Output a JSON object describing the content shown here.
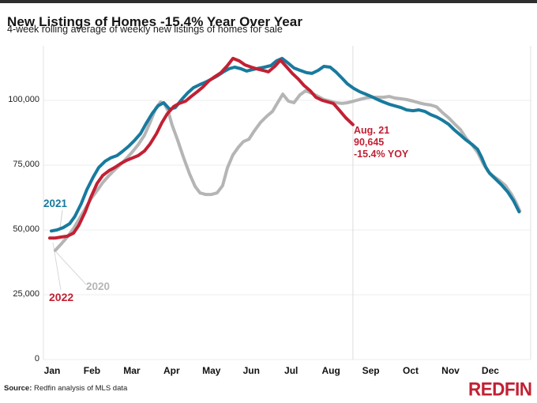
{
  "header": {
    "title": "New Listings of Homes -15.4% Year Over Year",
    "subtitle": "4-week rolling average of weekly new listings of homes for sale"
  },
  "series_labels": {
    "y2021": "2021",
    "y2020": "2020",
    "y2022": "2022"
  },
  "footer": {
    "source_label": "Source:",
    "source_text": " Redfin analysis of MLS data",
    "logo_text": "REDFIN"
  },
  "chart_data": {
    "type": "line",
    "title": "New Listings of Homes -15.4% Year Over Year",
    "subtitle": "4-week rolling average of weekly new listings of homes for sale",
    "grid": "horizontal-light",
    "legend_position": "inline-labels",
    "x_axis": {
      "unit": "month",
      "months": [
        "Jan",
        "Feb",
        "Mar",
        "Apr",
        "May",
        "Jun",
        "Jul",
        "Aug",
        "Sep",
        "Oct",
        "Nov",
        "Dec"
      ]
    },
    "y_axis": {
      "range": [
        0,
        121000
      ],
      "ticks": [
        {
          "label": "0",
          "value": 0
        },
        {
          "label": "25,000",
          "value": 25000
        },
        {
          "label": "50,000",
          "value": 50000
        },
        {
          "label": "75,000",
          "value": 75000
        },
        {
          "label": "100,000",
          "value": 100000
        }
      ]
    },
    "annotation": {
      "lines": [
        "Aug. 21",
        "90,645",
        "-15.4% YOY"
      ],
      "marker_month": 7.55,
      "color": "#c22033"
    },
    "series": [
      {
        "name": "2020",
        "color": "#b5b5b5",
        "points": [
          [
            0.08,
            42100
          ],
          [
            0.24,
            44800
          ],
          [
            0.38,
            47300
          ],
          [
            0.54,
            50600
          ],
          [
            0.67,
            54000
          ],
          [
            0.83,
            58200
          ],
          [
            0.97,
            61900
          ],
          [
            1.13,
            65200
          ],
          [
            1.27,
            68300
          ],
          [
            1.43,
            71000
          ],
          [
            1.57,
            73200
          ],
          [
            1.72,
            75300
          ],
          [
            1.86,
            77500
          ],
          [
            2.02,
            80200
          ],
          [
            2.16,
            82900
          ],
          [
            2.32,
            86600
          ],
          [
            2.46,
            91500
          ],
          [
            2.6,
            96900
          ],
          [
            2.72,
            99400
          ],
          [
            2.81,
            98800
          ],
          [
            2.91,
            96000
          ],
          [
            3.01,
            90500
          ],
          [
            3.15,
            84700
          ],
          [
            3.29,
            78300
          ],
          [
            3.45,
            71600
          ],
          [
            3.59,
            66800
          ],
          [
            3.71,
            64300
          ],
          [
            3.85,
            63700
          ],
          [
            4.0,
            63700
          ],
          [
            4.14,
            64300
          ],
          [
            4.28,
            67100
          ],
          [
            4.4,
            74000
          ],
          [
            4.54,
            79000
          ],
          [
            4.68,
            82000
          ],
          [
            4.8,
            84100
          ],
          [
            4.94,
            85000
          ],
          [
            5.07,
            88100
          ],
          [
            5.23,
            91500
          ],
          [
            5.39,
            93900
          ],
          [
            5.53,
            95700
          ],
          [
            5.67,
            99400
          ],
          [
            5.79,
            102400
          ],
          [
            5.93,
            99700
          ],
          [
            6.07,
            99100
          ],
          [
            6.22,
            102100
          ],
          [
            6.36,
            103700
          ],
          [
            6.52,
            102700
          ],
          [
            6.68,
            101500
          ],
          [
            6.82,
            100300
          ],
          [
            6.98,
            99700
          ],
          [
            7.12,
            99100
          ],
          [
            7.28,
            98800
          ],
          [
            7.41,
            99100
          ],
          [
            7.57,
            99700
          ],
          [
            7.71,
            100300
          ],
          [
            7.87,
            100900
          ],
          [
            8.01,
            101200
          ],
          [
            8.17,
            101200
          ],
          [
            8.31,
            101200
          ],
          [
            8.46,
            101500
          ],
          [
            8.6,
            100900
          ],
          [
            8.76,
            100600
          ],
          [
            8.9,
            100300
          ],
          [
            9.06,
            99700
          ],
          [
            9.2,
            99100
          ],
          [
            9.36,
            98500
          ],
          [
            9.5,
            98200
          ],
          [
            9.65,
            97500
          ],
          [
            9.79,
            95400
          ],
          [
            9.95,
            93300
          ],
          [
            10.09,
            91100
          ],
          [
            10.25,
            88700
          ],
          [
            10.39,
            85400
          ],
          [
            10.55,
            82600
          ],
          [
            10.68,
            79900
          ],
          [
            10.82,
            75600
          ],
          [
            10.94,
            72600
          ],
          [
            11.08,
            70700
          ],
          [
            11.22,
            69200
          ],
          [
            11.38,
            67100
          ],
          [
            11.52,
            64000
          ],
          [
            11.64,
            60700
          ],
          [
            11.74,
            57300
          ]
        ]
      },
      {
        "name": "2021",
        "color": "#187a9e",
        "points": [
          [
            -0.02,
            49600
          ],
          [
            0.12,
            50000
          ],
          [
            0.28,
            50900
          ],
          [
            0.44,
            52400
          ],
          [
            0.57,
            55200
          ],
          [
            0.73,
            60100
          ],
          [
            0.87,
            65500
          ],
          [
            1.03,
            70400
          ],
          [
            1.17,
            74100
          ],
          [
            1.33,
            76500
          ],
          [
            1.47,
            77800
          ],
          [
            1.63,
            78700
          ],
          [
            1.76,
            80200
          ],
          [
            1.92,
            82300
          ],
          [
            2.06,
            84400
          ],
          [
            2.22,
            87200
          ],
          [
            2.36,
            91100
          ],
          [
            2.52,
            95100
          ],
          [
            2.66,
            97900
          ],
          [
            2.8,
            99100
          ],
          [
            2.95,
            96600
          ],
          [
            3.09,
            97200
          ],
          [
            3.25,
            100300
          ],
          [
            3.41,
            103000
          ],
          [
            3.55,
            104900
          ],
          [
            3.71,
            106100
          ],
          [
            3.85,
            107000
          ],
          [
            4.0,
            108200
          ],
          [
            4.14,
            109400
          ],
          [
            4.3,
            111000
          ],
          [
            4.44,
            112200
          ],
          [
            4.58,
            112800
          ],
          [
            4.74,
            112200
          ],
          [
            4.88,
            111300
          ],
          [
            5.03,
            111900
          ],
          [
            5.19,
            112400
          ],
          [
            5.33,
            112800
          ],
          [
            5.49,
            113400
          ],
          [
            5.63,
            115200
          ],
          [
            5.77,
            116200
          ],
          [
            5.93,
            114300
          ],
          [
            6.07,
            112500
          ],
          [
            6.22,
            111600
          ],
          [
            6.38,
            110700
          ],
          [
            6.52,
            110400
          ],
          [
            6.68,
            111600
          ],
          [
            6.82,
            113100
          ],
          [
            6.98,
            112800
          ],
          [
            7.12,
            111000
          ],
          [
            7.28,
            108500
          ],
          [
            7.41,
            106400
          ],
          [
            7.57,
            104600
          ],
          [
            7.71,
            103400
          ],
          [
            7.87,
            102400
          ],
          [
            8.01,
            101500
          ],
          [
            8.17,
            100300
          ],
          [
            8.31,
            99400
          ],
          [
            8.46,
            98500
          ],
          [
            8.6,
            97900
          ],
          [
            8.76,
            97200
          ],
          [
            8.9,
            96300
          ],
          [
            9.06,
            96000
          ],
          [
            9.2,
            96300
          ],
          [
            9.36,
            95700
          ],
          [
            9.5,
            94500
          ],
          [
            9.65,
            93600
          ],
          [
            9.79,
            92400
          ],
          [
            9.95,
            90800
          ],
          [
            10.09,
            88700
          ],
          [
            10.25,
            86600
          ],
          [
            10.39,
            84700
          ],
          [
            10.55,
            82900
          ],
          [
            10.68,
            81100
          ],
          [
            10.78,
            78000
          ],
          [
            10.88,
            74400
          ],
          [
            10.98,
            71900
          ],
          [
            11.14,
            69500
          ],
          [
            11.28,
            67400
          ],
          [
            11.44,
            64600
          ],
          [
            11.58,
            61300
          ],
          [
            11.72,
            57000
          ]
        ]
      },
      {
        "name": "2022",
        "color": "#c22033",
        "points": [
          [
            -0.06,
            46900
          ],
          [
            0.08,
            46900
          ],
          [
            0.24,
            47300
          ],
          [
            0.38,
            47600
          ],
          [
            0.54,
            48800
          ],
          [
            0.67,
            51800
          ],
          [
            0.83,
            57000
          ],
          [
            0.97,
            62500
          ],
          [
            1.13,
            68000
          ],
          [
            1.27,
            71000
          ],
          [
            1.43,
            72900
          ],
          [
            1.57,
            74100
          ],
          [
            1.72,
            75600
          ],
          [
            1.86,
            76800
          ],
          [
            2.02,
            77800
          ],
          [
            2.16,
            78700
          ],
          [
            2.32,
            80500
          ],
          [
            2.46,
            83200
          ],
          [
            2.62,
            87200
          ],
          [
            2.76,
            91500
          ],
          [
            2.89,
            94800
          ],
          [
            3.05,
            97600
          ],
          [
            3.19,
            98800
          ],
          [
            3.35,
            99700
          ],
          [
            3.49,
            101500
          ],
          [
            3.65,
            103400
          ],
          [
            3.79,
            105200
          ],
          [
            3.94,
            107600
          ],
          [
            4.08,
            109100
          ],
          [
            4.24,
            110700
          ],
          [
            4.4,
            113400
          ],
          [
            4.54,
            116200
          ],
          [
            4.7,
            115200
          ],
          [
            4.84,
            113700
          ],
          [
            5.0,
            112800
          ],
          [
            5.13,
            112200
          ],
          [
            5.29,
            111600
          ],
          [
            5.43,
            111000
          ],
          [
            5.59,
            113100
          ],
          [
            5.73,
            115500
          ],
          [
            5.89,
            112800
          ],
          [
            6.03,
            110400
          ],
          [
            6.18,
            108200
          ],
          [
            6.32,
            105800
          ],
          [
            6.48,
            103700
          ],
          [
            6.62,
            101200
          ],
          [
            6.78,
            100000
          ],
          [
            6.92,
            99400
          ],
          [
            7.06,
            98800
          ],
          [
            7.22,
            96000
          ],
          [
            7.37,
            93300
          ],
          [
            7.55,
            90645
          ]
        ]
      }
    ]
  }
}
